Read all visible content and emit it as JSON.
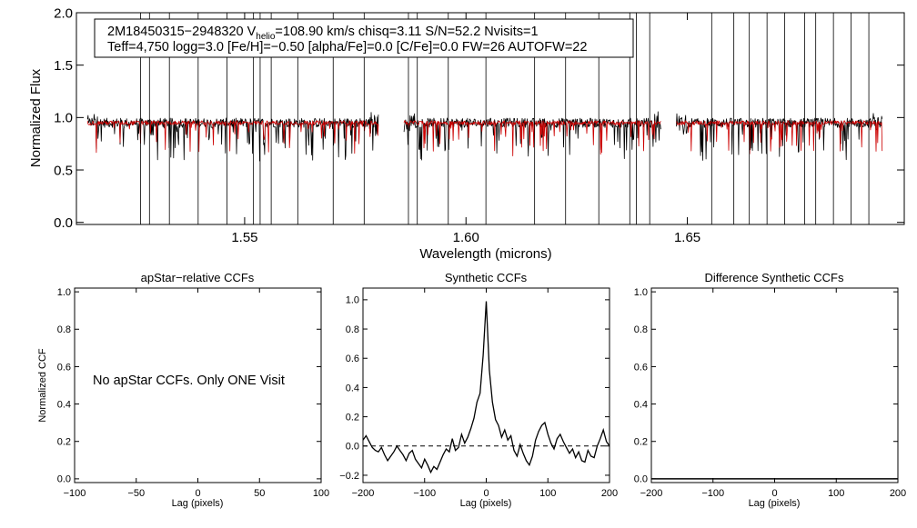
{
  "chart_data": [
    {
      "type": "line",
      "ylabel": "Normalized Flux",
      "xlabel": "Wavelength (microns)",
      "xlim": [
        1.512,
        1.699
      ],
      "ylim": [
        -0.02,
        2.0
      ],
      "x_ticks": [
        1.55,
        1.6,
        1.65
      ],
      "x_tick_labels": [
        "1.55",
        "1.60",
        "1.65"
      ],
      "y_ticks": [
        0.0,
        0.5,
        1.0,
        1.5,
        2.0
      ],
      "y_tick_labels": [
        "0.0",
        "0.5",
        "1.0",
        "1.5",
        "2.0"
      ],
      "annotation": {
        "line1_pre": "2M18450315−2948320  V",
        "line1_sub": "helio",
        "line1_post": "=108.90 km/s  chisq=3.11  S/N=52.2  Nvisits=1",
        "line2": "Teff=4,750 logg=3.0 [Fe/H]=−0.50 [alpha/Fe]=0.0 [C/Fe]=0.0 FW=26 AUTOFW=22"
      },
      "chip_ranges": [
        [
          1.5145,
          1.5802
        ],
        [
          1.586,
          1.644
        ],
        [
          1.6475,
          1.694
        ]
      ],
      "series": [
        {
          "color": "#000000",
          "continuum": 0.95,
          "noise": 0.045
        },
        {
          "color": "#cc0000",
          "continuum": 0.95,
          "noise": 0.02
        }
      ],
      "strong_features": [
        1.5265,
        1.5285,
        1.533,
        1.5395,
        1.546,
        1.552,
        1.5535,
        1.556,
        1.562,
        1.57,
        1.577,
        1.587,
        1.589,
        1.596,
        1.6045,
        1.6155,
        1.6225,
        1.63,
        1.637,
        1.6385,
        1.6415,
        1.6555,
        1.6605,
        1.664,
        1.668,
        1.672,
        1.6765,
        1.679,
        1.683,
        1.687,
        1.691
      ]
    },
    {
      "type": "line",
      "title": "apStar−relative CCFs",
      "ylabel": "Normalized CCF",
      "xlabel": "Lag (pixels)",
      "xlim": [
        -100,
        100
      ],
      "ylim": [
        -0.02,
        1.02
      ],
      "x_ticks": [
        -100,
        -50,
        0,
        50,
        100
      ],
      "x_tick_labels": [
        "−100",
        "−50",
        "0",
        "50",
        "100"
      ],
      "y_ticks": [
        0.0,
        0.2,
        0.4,
        0.6,
        0.8,
        1.0
      ],
      "y_tick_labels": [
        "0.0",
        "0.2",
        "0.4",
        "0.6",
        "0.8",
        "1.0"
      ],
      "message": "No apStar CCFs.  Only ONE Visit"
    },
    {
      "type": "line",
      "title": "Synthetic CCFs",
      "xlabel": "Lag (pixels)",
      "xlim": [
        -200,
        200
      ],
      "ylim": [
        -0.25,
        1.08
      ],
      "x_ticks": [
        -200,
        -100,
        0,
        100,
        200
      ],
      "x_tick_labels": [
        "−200",
        "−100",
        "0",
        "100",
        "200"
      ],
      "y_ticks": [
        -0.2,
        0.0,
        0.2,
        0.4,
        0.6,
        0.8,
        1.0
      ],
      "y_tick_labels": [
        "−0.2",
        "0.0",
        "0.2",
        "0.4",
        "0.6",
        "0.8",
        "1.0"
      ],
      "zero_line": 0.0,
      "series": [
        {
          "x": [
            -200,
            -195,
            -190,
            -185,
            -180,
            -175,
            -170,
            -165,
            -160,
            -155,
            -150,
            -145,
            -140,
            -135,
            -130,
            -125,
            -120,
            -115,
            -110,
            -105,
            -100,
            -95,
            -90,
            -85,
            -80,
            -75,
            -70,
            -65,
            -60,
            -55,
            -50,
            -45,
            -40,
            -35,
            -30,
            -25,
            -20,
            -15,
            -10,
            -5,
            0,
            5,
            10,
            15,
            20,
            25,
            30,
            35,
            40,
            45,
            50,
            55,
            60,
            65,
            70,
            75,
            80,
            85,
            90,
            95,
            100,
            105,
            110,
            115,
            120,
            125,
            130,
            135,
            140,
            145,
            150,
            155,
            160,
            165,
            170,
            175,
            180,
            185,
            190,
            195,
            200
          ],
          "y": [
            0.04,
            0.07,
            0.03,
            -0.01,
            -0.03,
            -0.04,
            -0.01,
            -0.06,
            -0.1,
            -0.07,
            -0.04,
            0.0,
            -0.03,
            -0.06,
            -0.1,
            -0.05,
            -0.03,
            -0.09,
            -0.12,
            -0.15,
            -0.09,
            -0.13,
            -0.18,
            -0.14,
            -0.16,
            -0.11,
            -0.06,
            -0.02,
            -0.04,
            0.05,
            -0.03,
            -0.01,
            0.08,
            0.02,
            0.06,
            0.12,
            0.19,
            0.3,
            0.36,
            0.62,
            0.99,
            0.52,
            0.3,
            0.18,
            0.14,
            0.06,
            0.11,
            0.04,
            0.07,
            -0.03,
            -0.07,
            0.01,
            -0.05,
            -0.1,
            -0.13,
            -0.07,
            0.04,
            0.1,
            0.14,
            0.16,
            0.08,
            0.02,
            -0.02,
            0.05,
            0.08,
            0.03,
            -0.01,
            -0.05,
            -0.02,
            -0.08,
            -0.04,
            -0.1,
            -0.11,
            -0.03,
            -0.07,
            -0.08,
            0.0,
            0.05,
            0.11,
            0.03,
            0.0
          ]
        }
      ]
    },
    {
      "type": "line",
      "title": "Difference Synthetic CCFs",
      "xlabel": "Lag (pixels)",
      "xlim": [
        -200,
        200
      ],
      "ylim": [
        -0.02,
        1.02
      ],
      "x_ticks": [
        -200,
        -100,
        0,
        100,
        200
      ],
      "x_tick_labels": [
        "−200",
        "−100",
        "0",
        "100",
        "200"
      ],
      "y_ticks": [
        0.0,
        0.2,
        0.4,
        0.6,
        0.8,
        1.0
      ],
      "y_tick_labels": [
        "0.0",
        "0.2",
        "0.4",
        "0.6",
        "0.8",
        "1.0"
      ],
      "series": [
        {
          "x": [
            -200,
            200
          ],
          "y": [
            0.0,
            0.0
          ]
        }
      ]
    }
  ]
}
